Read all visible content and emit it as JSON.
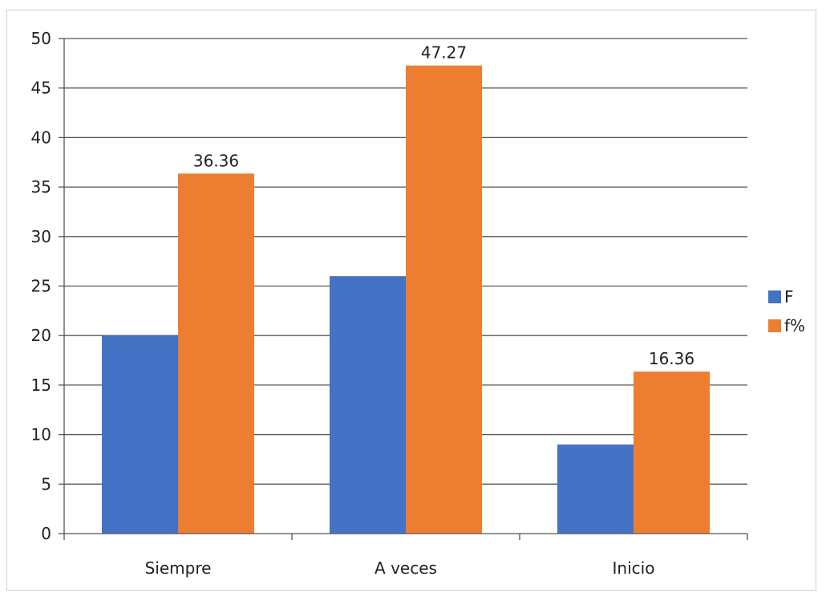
{
  "chart_data": {
    "type": "bar",
    "title": "",
    "xlabel": "",
    "ylabel": "",
    "categories": [
      "Siempre",
      "A veces",
      "Inicio"
    ],
    "series": [
      {
        "name": "F",
        "color": "#4472C4",
        "values": [
          20,
          26,
          9
        ],
        "labels": []
      },
      {
        "name": "f%",
        "color": "#ED7D31",
        "values": [
          36.36,
          47.27,
          16.36
        ],
        "labels": [
          "36.36",
          "47.27",
          "16.36"
        ]
      }
    ],
    "ylim": [
      0,
      50
    ],
    "yticks": [
      "0",
      "5",
      "10",
      "15",
      "20",
      "25",
      "30",
      "35",
      "40",
      "45",
      "50"
    ],
    "grid": true,
    "legend_position": "right"
  }
}
